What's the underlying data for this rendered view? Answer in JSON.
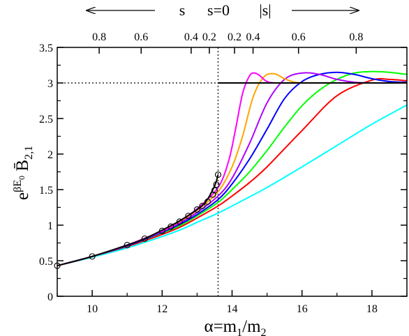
{
  "chart_data": {
    "type": "line",
    "xlabel": "α=m1/m2",
    "ylabel": "e^{βE0} B̄2,1",
    "xlim": [
      9,
      19
    ],
    "ylim": [
      0,
      3.5
    ],
    "x_ticks": [
      "10",
      "12",
      "14",
      "16",
      "18"
    ],
    "y_ticks": [
      "0",
      "0.5",
      "1",
      "1.5",
      "2",
      "2.5",
      "3",
      "3.5"
    ],
    "top_axis": {
      "left_label": "s",
      "center_label": "s=0",
      "right_label": "|s|",
      "left_ticks": [
        {
          "label": "0.8",
          "x": 10.2
        },
        {
          "label": "0.6",
          "x": 11.4
        },
        {
          "label": "0.4",
          "x": 12.83
        },
        {
          "label": "0.2",
          "x": 13.35
        }
      ],
      "right_ticks": [
        {
          "label": "0.2",
          "x": 14.07
        },
        {
          "label": "0.4",
          "x": 14.6
        },
        {
          "label": "0.6",
          "x": 15.9
        },
        {
          "label": "0.8",
          "x": 17.55
        }
      ]
    },
    "reference": {
      "threshold_x": 13.6,
      "plateau_y": 3.0
    },
    "series": [
      {
        "color": "#00ffff",
        "x": [
          9,
          10,
          11,
          12,
          12.5,
          13,
          13.6,
          14,
          15,
          16,
          17,
          18,
          19
        ],
        "y": [
          0.43,
          0.55,
          0.68,
          0.84,
          0.93,
          1.04,
          1.17,
          1.27,
          1.53,
          1.82,
          2.12,
          2.42,
          2.69
        ]
      },
      {
        "color": "#ff0000",
        "x": [
          9,
          10,
          11,
          12,
          12.5,
          13,
          13.6,
          14,
          14.5,
          15,
          16,
          17,
          18,
          18.5,
          19
        ],
        "y": [
          0.43,
          0.56,
          0.7,
          0.87,
          0.97,
          1.1,
          1.27,
          1.41,
          1.6,
          1.82,
          2.33,
          2.82,
          3.04,
          3.05,
          3.03
        ]
      },
      {
        "color": "#00ff00",
        "x": [
          9,
          10,
          11,
          12,
          12.5,
          13,
          13.6,
          14,
          14.5,
          15,
          15.5,
          16,
          16.5,
          17,
          17.5,
          18,
          18.5,
          19
        ],
        "y": [
          0.43,
          0.56,
          0.71,
          0.89,
          0.99,
          1.13,
          1.32,
          1.5,
          1.75,
          2.05,
          2.38,
          2.68,
          2.9,
          3.05,
          3.14,
          3.16,
          3.15,
          3.12
        ]
      },
      {
        "color": "#0000ff",
        "x": [
          9,
          10,
          11,
          12,
          12.5,
          13,
          13.6,
          14,
          14.5,
          15,
          15.5,
          16,
          16.5,
          17,
          17.5,
          18,
          18.5,
          19
        ],
        "y": [
          0.43,
          0.56,
          0.71,
          0.9,
          1.01,
          1.15,
          1.36,
          1.58,
          1.93,
          2.35,
          2.78,
          3.02,
          3.12,
          3.15,
          3.12,
          3.06,
          3.02,
          3.01
        ]
      },
      {
        "color": "#b000ff",
        "x": [
          9,
          10,
          11,
          12,
          12.5,
          13,
          13.6,
          14,
          14.5,
          15,
          15.5,
          16,
          16.5,
          17,
          17.5,
          18,
          19
        ],
        "y": [
          0.43,
          0.56,
          0.72,
          0.91,
          1.03,
          1.18,
          1.41,
          1.66,
          2.15,
          2.72,
          3.05,
          3.14,
          3.12,
          3.05,
          3.01,
          3.0,
          3.0
        ]
      },
      {
        "color": "#ffa500",
        "x": [
          9,
          10,
          11,
          12,
          12.5,
          13,
          13.6,
          14,
          14.3,
          14.6,
          14.9,
          15.2,
          15.5,
          15.8,
          16.2,
          17,
          19
        ],
        "y": [
          0.43,
          0.56,
          0.72,
          0.92,
          1.05,
          1.21,
          1.47,
          1.82,
          2.25,
          2.8,
          3.08,
          3.13,
          3.06,
          3.01,
          3.0,
          3.0,
          3.0
        ]
      },
      {
        "color": "#ff00ff",
        "x": [
          9,
          10,
          11,
          12,
          12.5,
          13,
          13.6,
          13.9,
          14.1,
          14.3,
          14.5,
          14.65,
          14.8,
          15.0,
          15.3,
          16,
          19
        ],
        "y": [
          0.43,
          0.56,
          0.72,
          0.92,
          1.06,
          1.23,
          1.53,
          1.9,
          2.35,
          2.85,
          3.1,
          3.14,
          3.1,
          3.02,
          3.0,
          3.0,
          3.0
        ]
      },
      {
        "color": "#000000",
        "x": [
          9,
          10,
          11,
          11.5,
          12,
          12.5,
          13,
          13.25,
          13.5,
          13.6,
          13.6,
          19
        ],
        "y": [
          0.43,
          0.56,
          0.72,
          0.81,
          0.93,
          1.06,
          1.22,
          1.33,
          1.55,
          1.71,
          3.0,
          3.0
        ],
        "break_after": 9
      },
      {
        "color": "#000000",
        "type": "scatter",
        "x": [
          9.0,
          10.0,
          11.0,
          11.5,
          12.0,
          12.25,
          12.5,
          12.75,
          13.0,
          13.15,
          13.3,
          13.45,
          13.5,
          13.55,
          13.6
        ],
        "y": [
          0.43,
          0.56,
          0.72,
          0.81,
          0.92,
          0.98,
          1.05,
          1.13,
          1.22,
          1.27,
          1.33,
          1.43,
          1.49,
          1.57,
          1.71
        ]
      }
    ]
  }
}
